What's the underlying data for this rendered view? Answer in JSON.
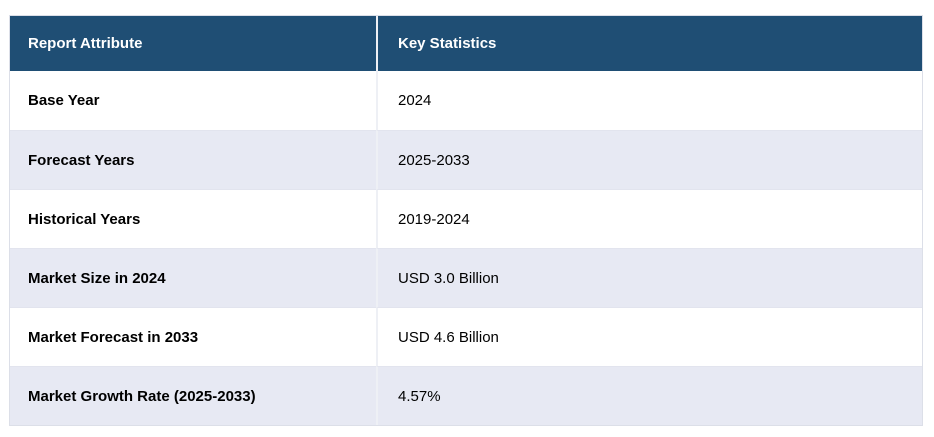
{
  "table": {
    "name": "market-report-key-statistics",
    "columns": [
      {
        "label": "Report Attribute"
      },
      {
        "label": "Key Statistics"
      }
    ],
    "rows": [
      {
        "attribute": "Base Year",
        "value": "2024"
      },
      {
        "attribute": "Forecast Years",
        "value": "2025-2033"
      },
      {
        "attribute": "Historical Years",
        "value": "2019-2024"
      },
      {
        "attribute": "Market Size in 2024",
        "value": "USD 3.0 Billion"
      },
      {
        "attribute": "Market Forecast in 2033",
        "value": "USD 4.6 Billion"
      },
      {
        "attribute": "Market Growth Rate (2025-2033)",
        "value": "4.57%"
      }
    ],
    "colors": {
      "header_bg": "#1f4e74",
      "header_text": "#ffffff",
      "row_bg": "#ffffff",
      "row_alt_bg": "#e7e9f3",
      "body_text": "#000000",
      "border": "#dcdfe8"
    }
  }
}
